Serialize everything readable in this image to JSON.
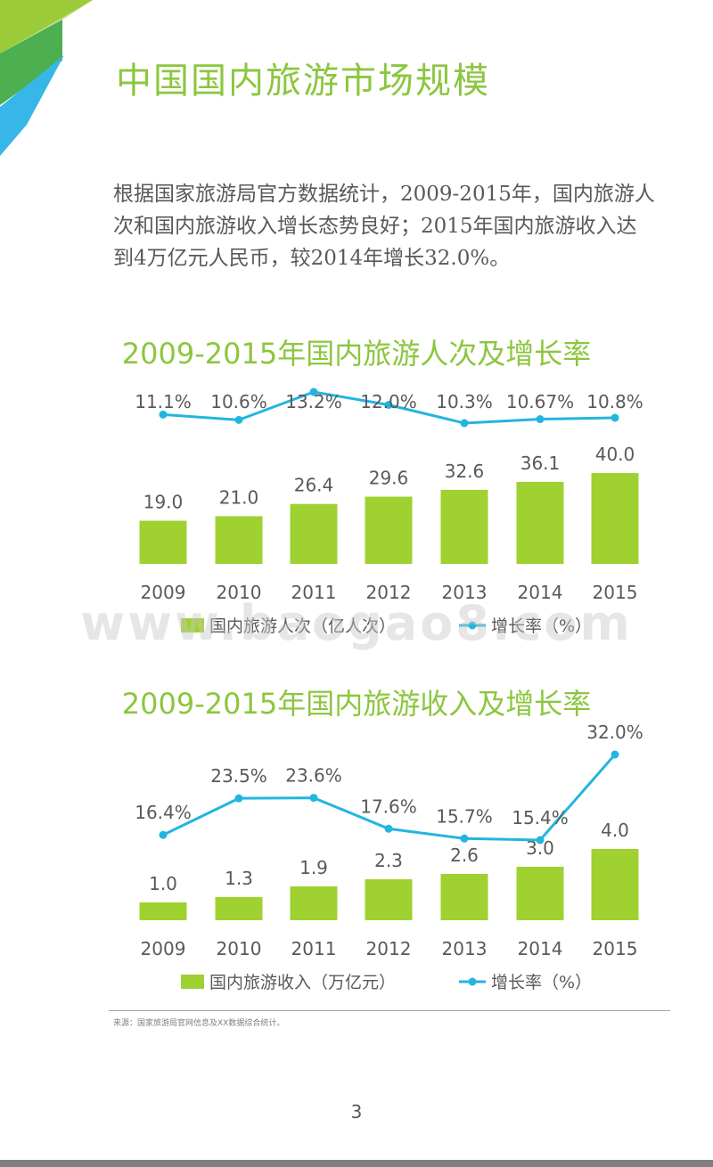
{
  "page": {
    "title": "中国国内旅游市场规模",
    "intro": "根据国家旅游局官方数据统计，2009-2015年，国内旅游人次和国内旅游收入增长态势良好；2015年国内旅游收入达到4万亿元人民币，较2014年增长32.0%。",
    "watermark": "www.baogao8.com",
    "source": "来源：国家旅游局官网信息及XX数据综合统计。",
    "page_number": "3"
  },
  "colors": {
    "accent": "#8cc63f",
    "bar": "#9fd130",
    "line": "#23b5e0",
    "text": "#595959"
  },
  "chart_data": [
    {
      "type": "bar",
      "title": "2009-2015年国内旅游人次及增长率",
      "categories": [
        "2009",
        "2010",
        "2011",
        "2012",
        "2013",
        "2014",
        "2015"
      ],
      "series": [
        {
          "name": "国内旅游人次（亿人次）",
          "type": "bar",
          "values": [
            19.0,
            21.0,
            26.4,
            29.6,
            32.6,
            36.1,
            40.0
          ],
          "labels": [
            "19.0",
            "21.0",
            "26.4",
            "29.6",
            "32.6",
            "36.1",
            "40.0"
          ]
        },
        {
          "name": "增长率（%）",
          "type": "line",
          "values": [
            11.1,
            10.6,
            13.2,
            12.0,
            10.3,
            10.67,
            10.8
          ],
          "labels": [
            "11.1%",
            "10.6%",
            "13.2%",
            "12.0%",
            "10.3%",
            "10.67%",
            "10.8%"
          ]
        }
      ],
      "legend": "bottom"
    },
    {
      "type": "bar",
      "title": "2009-2015年国内旅游收入及增长率",
      "categories": [
        "2009",
        "2010",
        "2011",
        "2012",
        "2013",
        "2014",
        "2015"
      ],
      "series": [
        {
          "name": "国内旅游收入（万亿元）",
          "type": "bar",
          "values": [
            1.0,
            1.3,
            1.9,
            2.3,
            2.6,
            3.0,
            4.0
          ],
          "labels": [
            "1.0",
            "1.3",
            "1.9",
            "2.3",
            "2.6",
            "3.0",
            "4.0"
          ]
        },
        {
          "name": "增长率（%）",
          "type": "line",
          "values": [
            16.4,
            23.5,
            23.6,
            17.6,
            15.7,
            15.4,
            32.0
          ],
          "labels": [
            "16.4%",
            "23.5%",
            "23.6%",
            "17.6%",
            "15.7%",
            "15.4%",
            "32.0%"
          ]
        }
      ],
      "legend": "bottom"
    }
  ]
}
